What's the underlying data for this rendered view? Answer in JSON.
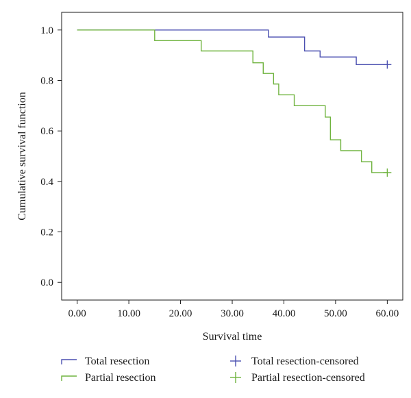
{
  "chart_data": {
    "type": "line",
    "xlabel": "Survival time",
    "ylabel": "Cumulative survival function",
    "xlim": [
      -3,
      63
    ],
    "ylim": [
      -0.07,
      1.07
    ],
    "x_ticks": [
      "0.00",
      "10.00",
      "20.00",
      "30.00",
      "40.00",
      "50.00",
      "60.00"
    ],
    "y_ticks": [
      "0.0",
      "0.2",
      "0.4",
      "0.6",
      "0.8",
      "1.0"
    ],
    "grid": false,
    "legend_position": "bottom",
    "series": [
      {
        "name": "Total resection",
        "color": "#4a4fb0",
        "step": true,
        "x": [
          0,
          37,
          44,
          47,
          54,
          60
        ],
        "y": [
          1.0,
          0.972,
          0.917,
          0.893,
          0.863,
          0.863
        ]
      },
      {
        "name": "Partial resection",
        "color": "#6fb33e",
        "step": true,
        "x": [
          0,
          15,
          24,
          34,
          36,
          38,
          39,
          42,
          48,
          49,
          51,
          55,
          57,
          60
        ],
        "y": [
          1.0,
          0.958,
          0.917,
          0.87,
          0.828,
          0.786,
          0.743,
          0.7,
          0.655,
          0.565,
          0.522,
          0.478,
          0.435,
          0.435
        ]
      }
    ],
    "censored": [
      {
        "name": "Total resection-censored",
        "color": "#4a4fb0",
        "x": [
          60
        ],
        "y": [
          0.863
        ]
      },
      {
        "name": "Partial resection-censored",
        "color": "#6fb33e",
        "x": [
          60
        ],
        "y": [
          0.435
        ]
      }
    ]
  }
}
